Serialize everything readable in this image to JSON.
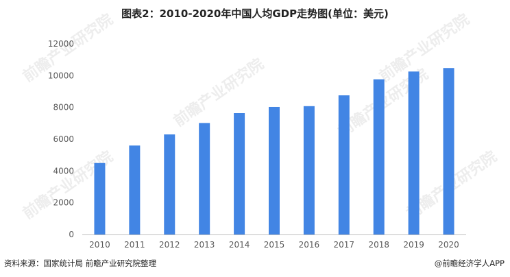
{
  "chart_data": {
    "type": "bar",
    "title": "图表2：2010-2020年中国人均GDP走势图(单位：美元)",
    "categories": [
      "2010",
      "2011",
      "2012",
      "2013",
      "2014",
      "2015",
      "2016",
      "2017",
      "2018",
      "2019",
      "2020"
    ],
    "values": [
      4500,
      5600,
      6300,
      7020,
      7640,
      8030,
      8080,
      8760,
      9770,
      10260,
      10480
    ],
    "ylim": [
      0,
      12000
    ],
    "yticks": [
      0,
      2000,
      4000,
      6000,
      8000,
      10000,
      12000
    ],
    "xlabel": "",
    "ylabel": "",
    "grid": false,
    "bar_color": "#4285e4"
  },
  "watermark": "前瞻产业研究院",
  "footer": {
    "source": "资料来源：国家统计局 前瞻产业研究院整理",
    "brand": "@前瞻经济学人APP"
  }
}
